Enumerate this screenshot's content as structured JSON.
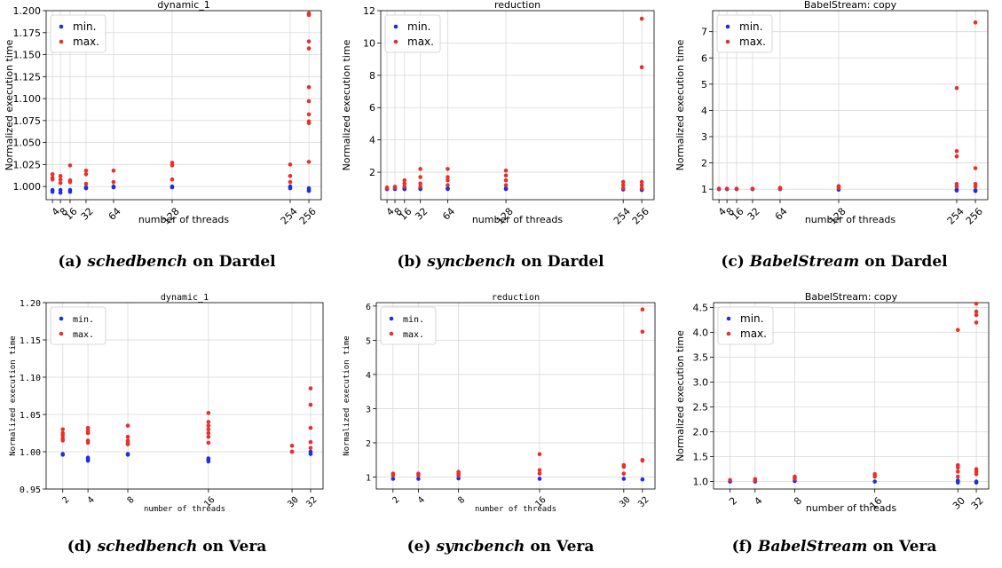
{
  "colors": {
    "min": "#1f2ee0",
    "max": "#e8302a",
    "grid": "#d9d9d9",
    "axis": "#000000"
  },
  "chart_data": [
    {
      "type": "scatter",
      "title": "dynamic_1",
      "xlabel": "number of threads",
      "ylabel": "Normalized execution time",
      "xticks": [
        "4",
        "8",
        "16",
        "32",
        "64",
        "128",
        "254",
        "256"
      ],
      "ylim": [
        0.985,
        1.2
      ],
      "yticks": [
        "1.000",
        "1.025",
        "1.050",
        "1.075",
        "1.100",
        "1.125",
        "1.150",
        "1.175",
        "1.200"
      ],
      "ytick_values": [
        1.0,
        1.025,
        1.05,
        1.075,
        1.1,
        1.125,
        1.15,
        1.175,
        1.2
      ],
      "grid": true,
      "legend": "top-left",
      "series": [
        {
          "name": "min.",
          "points": [
            [
              4,
              0.996
            ],
            [
              4,
              0.994
            ],
            [
              8,
              0.996
            ],
            [
              8,
              0.993
            ],
            [
              16,
              0.996
            ],
            [
              16,
              0.994
            ],
            [
              32,
              0.999
            ],
            [
              32,
              0.998
            ],
            [
              64,
              1.0
            ],
            [
              64,
              0.999
            ],
            [
              128,
              0.999
            ],
            [
              128,
              1.0
            ],
            [
              254,
              0.998
            ],
            [
              254,
              1.0
            ],
            [
              256,
              0.996
            ],
            [
              256,
              0.995
            ],
            [
              256,
              0.998
            ]
          ]
        },
        {
          "name": "max.",
          "points": [
            [
              4,
              1.014
            ],
            [
              4,
              1.01
            ],
            [
              4,
              1.008
            ],
            [
              8,
              1.012
            ],
            [
              8,
              1.008
            ],
            [
              8,
              1.004
            ],
            [
              16,
              1.024
            ],
            [
              16,
              1.007
            ],
            [
              16,
              1.005
            ],
            [
              32,
              1.018
            ],
            [
              32,
              1.014
            ],
            [
              32,
              1.003
            ],
            [
              64,
              1.018
            ],
            [
              64,
              1.005
            ],
            [
              128,
              1.027
            ],
            [
              128,
              1.024
            ],
            [
              128,
              1.008
            ],
            [
              254,
              1.025
            ],
            [
              254,
              1.012
            ],
            [
              254,
              1.005
            ],
            [
              256,
              1.197
            ],
            [
              256,
              1.195
            ],
            [
              256,
              1.165
            ],
            [
              256,
              1.157
            ],
            [
              256,
              1.113
            ],
            [
              256,
              1.097
            ],
            [
              256,
              1.082
            ],
            [
              256,
              1.074
            ],
            [
              256,
              1.072
            ],
            [
              256,
              1.028
            ]
          ]
        }
      ]
    },
    {
      "type": "scatter",
      "title": "reduction",
      "xlabel": "number of threads",
      "ylabel": "Normalized execution time",
      "xticks": [
        "4",
        "8",
        "16",
        "32",
        "64",
        "128",
        "254",
        "256"
      ],
      "ylim": [
        0.3,
        12
      ],
      "yticks": [
        "2",
        "4",
        "6",
        "8",
        "10",
        "12"
      ],
      "ytick_values": [
        2,
        4,
        6,
        8,
        10,
        12
      ],
      "grid": true,
      "legend": "top-left",
      "series": [
        {
          "name": "min.",
          "points": [
            [
              4,
              0.95
            ],
            [
              8,
              0.96
            ],
            [
              16,
              0.95
            ],
            [
              16,
              1.0
            ],
            [
              32,
              0.96
            ],
            [
              32,
              1.0
            ],
            [
              64,
              0.96
            ],
            [
              64,
              1.0
            ],
            [
              128,
              0.96
            ],
            [
              128,
              1.0
            ],
            [
              254,
              0.93
            ],
            [
              254,
              0.97
            ],
            [
              256,
              0.9
            ],
            [
              256,
              0.95
            ]
          ]
        },
        {
          "name": "max.",
          "points": [
            [
              4,
              1.0
            ],
            [
              4,
              1.05
            ],
            [
              8,
              1.05
            ],
            [
              8,
              1.1
            ],
            [
              16,
              1.5
            ],
            [
              16,
              1.3
            ],
            [
              16,
              1.1
            ],
            [
              32,
              2.2
            ],
            [
              32,
              1.7
            ],
            [
              32,
              1.3
            ],
            [
              32,
              1.1
            ],
            [
              64,
              2.2
            ],
            [
              64,
              1.7
            ],
            [
              64,
              1.5
            ],
            [
              64,
              1.2
            ],
            [
              128,
              2.1
            ],
            [
              128,
              1.8
            ],
            [
              128,
              1.5
            ],
            [
              128,
              1.2
            ],
            [
              254,
              1.4
            ],
            [
              254,
              1.2
            ],
            [
              254,
              1.0
            ],
            [
              256,
              11.5
            ],
            [
              256,
              8.5
            ],
            [
              256,
              1.4
            ],
            [
              256,
              1.2
            ],
            [
              256,
              1.0
            ]
          ]
        }
      ]
    },
    {
      "type": "scatter",
      "title": "BabelStream: copy",
      "xlabel": "number of threads",
      "ylabel": "Normalized execution time",
      "xticks": [
        "4",
        "8",
        "16",
        "32",
        "64",
        "128",
        "254",
        "256"
      ],
      "ylim": [
        0.6,
        7.8
      ],
      "yticks": [
        "1",
        "2",
        "3",
        "4",
        "5",
        "6",
        "7"
      ],
      "ytick_values": [
        1,
        2,
        3,
        4,
        5,
        6,
        7
      ],
      "grid": true,
      "legend": "top-left",
      "series": [
        {
          "name": "min.",
          "points": [
            [
              4,
              1.0
            ],
            [
              8,
              1.0
            ],
            [
              16,
              1.0
            ],
            [
              32,
              1.0
            ],
            [
              64,
              1.0
            ],
            [
              128,
              0.98
            ],
            [
              254,
              0.95
            ],
            [
              254,
              0.98
            ],
            [
              256,
              0.93
            ],
            [
              256,
              0.96
            ]
          ]
        },
        {
          "name": "max.",
          "points": [
            [
              4,
              1.02
            ],
            [
              8,
              1.02
            ],
            [
              16,
              1.02
            ],
            [
              32,
              1.02
            ],
            [
              64,
              1.05
            ],
            [
              64,
              1.02
            ],
            [
              128,
              1.12
            ],
            [
              128,
              1.05
            ],
            [
              254,
              4.85
            ],
            [
              254,
              2.45
            ],
            [
              254,
              2.25
            ],
            [
              254,
              1.2
            ],
            [
              254,
              1.1
            ],
            [
              256,
              7.35
            ],
            [
              256,
              1.8
            ],
            [
              256,
              1.2
            ],
            [
              256,
              1.1
            ]
          ]
        }
      ]
    },
    {
      "type": "scatter",
      "title": "dynamic_1",
      "xlabel": "number of threads",
      "ylabel": "Normalized execution time",
      "xticks": [
        "2",
        "4",
        "8",
        "16",
        "30",
        "32"
      ],
      "ylim": [
        0.95,
        1.2
      ],
      "yticks": [
        "0.95",
        "1.00",
        "1.05",
        "1.10",
        "1.15",
        "1.20"
      ],
      "ytick_values": [
        0.95,
        1.0,
        1.05,
        1.1,
        1.15,
        1.2
      ],
      "grid": true,
      "legend": "top-left",
      "series": [
        {
          "name": "min.",
          "points": [
            [
              2,
              0.997
            ],
            [
              2,
              0.996
            ],
            [
              4,
              0.992
            ],
            [
              4,
              0.99
            ],
            [
              4,
              0.988
            ],
            [
              8,
              0.997
            ],
            [
              8,
              0.996
            ],
            [
              16,
              0.991
            ],
            [
              16,
              0.989
            ],
            [
              16,
              0.987
            ],
            [
              30,
              1.0
            ],
            [
              32,
              1.0
            ],
            [
              32,
              0.997
            ]
          ]
        },
        {
          "name": "max.",
          "points": [
            [
              2,
              1.03
            ],
            [
              2,
              1.025
            ],
            [
              2,
              1.022
            ],
            [
              2,
              1.018
            ],
            [
              2,
              1.015
            ],
            [
              4,
              1.032
            ],
            [
              4,
              1.028
            ],
            [
              4,
              1.025
            ],
            [
              4,
              1.015
            ],
            [
              4,
              1.012
            ],
            [
              8,
              1.035
            ],
            [
              8,
              1.02
            ],
            [
              8,
              1.015
            ],
            [
              8,
              1.012
            ],
            [
              8,
              1.01
            ],
            [
              16,
              1.052
            ],
            [
              16,
              1.04
            ],
            [
              16,
              1.035
            ],
            [
              16,
              1.03
            ],
            [
              16,
              1.025
            ],
            [
              16,
              1.02
            ],
            [
              16,
              1.012
            ],
            [
              30,
              1.008
            ],
            [
              30,
              1.0
            ],
            [
              32,
              1.085
            ],
            [
              32,
              1.063
            ],
            [
              32,
              1.032
            ],
            [
              32,
              1.013
            ],
            [
              32,
              1.005
            ]
          ]
        }
      ]
    },
    {
      "type": "scatter",
      "title": "reduction",
      "xlabel": "number of threads",
      "ylabel": "Normalized execution time",
      "xticks": [
        "2",
        "4",
        "8",
        "16",
        "30",
        "32"
      ],
      "ylim": [
        0.65,
        6.1
      ],
      "yticks": [
        "1",
        "2",
        "3",
        "4",
        "5",
        "6"
      ],
      "ytick_values": [
        1,
        2,
        3,
        4,
        5,
        6
      ],
      "grid": true,
      "legend": "top-left",
      "series": [
        {
          "name": "min.",
          "points": [
            [
              2,
              0.95
            ],
            [
              4,
              0.95
            ],
            [
              8,
              0.96
            ],
            [
              16,
              0.95
            ],
            [
              30,
              0.95
            ],
            [
              32,
              0.93
            ]
          ]
        },
        {
          "name": "max.",
          "points": [
            [
              2,
              1.1
            ],
            [
              2,
              1.05
            ],
            [
              4,
              1.1
            ],
            [
              4,
              1.05
            ],
            [
              8,
              1.15
            ],
            [
              8,
              1.1
            ],
            [
              8,
              1.05
            ],
            [
              16,
              1.67
            ],
            [
              16,
              1.2
            ],
            [
              16,
              1.1
            ],
            [
              30,
              1.35
            ],
            [
              30,
              1.3
            ],
            [
              30,
              1.1
            ],
            [
              32,
              5.9
            ],
            [
              32,
              5.25
            ],
            [
              32,
              1.5
            ],
            [
              32,
              1.48
            ]
          ]
        }
      ]
    },
    {
      "type": "scatter",
      "title": "BabelStream: copy",
      "xlabel": "number of threads",
      "ylabel": "Normalized execution time",
      "xticks": [
        "2",
        "4",
        "8",
        "16",
        "30",
        "32"
      ],
      "ylim": [
        0.85,
        4.6
      ],
      "yticks": [
        "1.0",
        "1.5",
        "2.0",
        "2.5",
        "3.0",
        "3.5",
        "4.0",
        "4.5"
      ],
      "ytick_values": [
        1.0,
        1.5,
        2.0,
        2.5,
        3.0,
        3.5,
        4.0,
        4.5
      ],
      "grid": true,
      "legend": "top-left",
      "series": [
        {
          "name": "min.",
          "points": [
            [
              2,
              1.0
            ],
            [
              4,
              1.0
            ],
            [
              8,
              1.01
            ],
            [
              16,
              1.0
            ],
            [
              30,
              0.98
            ],
            [
              30,
              1.02
            ],
            [
              32,
              0.98
            ],
            [
              32,
              1.0
            ]
          ]
        },
        {
          "name": "max.",
          "points": [
            [
              2,
              1.03
            ],
            [
              4,
              1.05
            ],
            [
              4,
              1.02
            ],
            [
              8,
              1.1
            ],
            [
              8,
              1.08
            ],
            [
              8,
              1.05
            ],
            [
              16,
              1.15
            ],
            [
              16,
              1.1
            ],
            [
              30,
              4.05
            ],
            [
              30,
              1.33
            ],
            [
              30,
              1.28
            ],
            [
              30,
              1.2
            ],
            [
              30,
              1.1
            ],
            [
              32,
              4.58
            ],
            [
              32,
              4.42
            ],
            [
              32,
              4.35
            ],
            [
              32,
              4.2
            ],
            [
              32,
              1.25
            ],
            [
              32,
              1.2
            ],
            [
              32,
              1.15
            ]
          ]
        }
      ]
    }
  ],
  "captions": [
    {
      "tag": "(a) ",
      "em": "schedbench",
      "rest": " on Dardel"
    },
    {
      "tag": "(b) ",
      "em": "syncbench",
      "rest": " on Dardel"
    },
    {
      "tag": "(c) ",
      "em": "BabelStream",
      "rest": " on Dardel"
    },
    {
      "tag": "(d) ",
      "em": "schedbench",
      "rest": " on Vera"
    },
    {
      "tag": "(e) ",
      "em": "syncbench",
      "rest": " on Vera"
    },
    {
      "tag": "(f) ",
      "em": "BabelStream",
      "rest": " on Vera"
    }
  ]
}
